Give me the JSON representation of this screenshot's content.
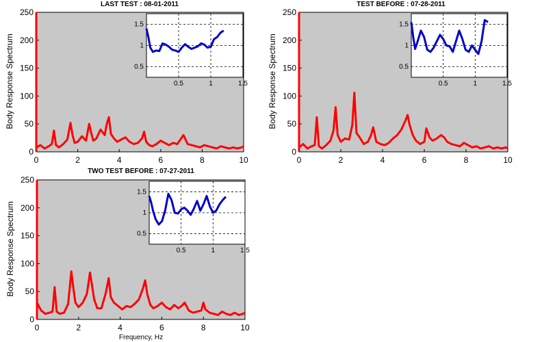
{
  "chart_data": [
    {
      "type": "line",
      "title": "LAST TEST : 08-01-2011",
      "ylabel": "Body Response Spectrum",
      "xlabel": "",
      "xlim": [
        0,
        10
      ],
      "ylim": [
        0,
        250
      ],
      "xticks": [
        "0",
        "2",
        "4",
        "6",
        "8",
        "10"
      ],
      "yticks": [
        "0",
        "50",
        "100",
        "150",
        "200",
        "250"
      ],
      "background": "#c8c8c8",
      "series": [
        {
          "color": "#ff0000",
          "x": [
            0.0,
            0.2,
            0.4,
            0.6,
            0.75,
            0.85,
            0.95,
            1.1,
            1.3,
            1.5,
            1.65,
            1.75,
            1.85,
            2.0,
            2.2,
            2.4,
            2.55,
            2.65,
            2.75,
            2.9,
            3.1,
            3.3,
            3.4,
            3.5,
            3.6,
            3.75,
            3.9,
            4.1,
            4.3,
            4.5,
            4.7,
            4.9,
            5.1,
            5.2,
            5.3,
            5.45,
            5.6,
            5.8,
            6.0,
            6.2,
            6.4,
            6.6,
            6.8,
            6.95,
            7.1,
            7.3,
            7.5,
            7.7,
            7.9,
            8.1,
            8.3,
            8.5,
            8.7,
            8.9,
            9.1,
            9.3,
            9.5,
            9.7,
            9.9,
            10.0
          ],
          "y": [
            8,
            12,
            6,
            10,
            14,
            38,
            12,
            8,
            14,
            22,
            52,
            30,
            16,
            18,
            28,
            20,
            50,
            34,
            20,
            24,
            40,
            30,
            50,
            62,
            32,
            24,
            18,
            22,
            26,
            18,
            14,
            16,
            24,
            36,
            18,
            12,
            10,
            14,
            20,
            16,
            12,
            16,
            14,
            22,
            30,
            14,
            12,
            10,
            8,
            12,
            10,
            8,
            6,
            10,
            8,
            6,
            8,
            6,
            8,
            10
          ]
        },
        {
          "color": "#ff0000",
          "x": [
            0.0,
            0.0
          ],
          "y": [
            0,
            250
          ]
        }
      ],
      "inset": {
        "xlim": [
          0,
          1.5
        ],
        "ylim": [
          0.25,
          1.75
        ],
        "xticks": [
          "0.5",
          "1",
          "1.5"
        ],
        "yticks": [
          "0.5",
          "1",
          "1.5"
        ],
        "series": [
          {
            "color": "#0000cc",
            "x": [
              0.0,
              0.03,
              0.06,
              0.1,
              0.15,
              0.2,
              0.25,
              0.3,
              0.35,
              0.4,
              0.45,
              0.5,
              0.55,
              0.6,
              0.65,
              0.7,
              0.75,
              0.8,
              0.85,
              0.9,
              0.95,
              1.0,
              1.05,
              1.1,
              1.15,
              1.2
            ],
            "y": [
              1.4,
              1.2,
              0.95,
              0.85,
              0.88,
              0.87,
              1.05,
              1.02,
              0.97,
              0.9,
              0.88,
              0.85,
              0.95,
              1.03,
              0.97,
              0.92,
              0.95,
              0.98,
              1.05,
              1.02,
              0.95,
              0.97,
              1.15,
              1.2,
              1.3,
              1.35
            ]
          }
        ]
      }
    },
    {
      "type": "line",
      "title": "TEST BEFORE : 07-28-2011",
      "ylabel": "Body Response Spectrum",
      "xlabel": "",
      "xlim": [
        0,
        10
      ],
      "ylim": [
        0,
        250
      ],
      "xticks": [
        "0",
        "2",
        "4",
        "6",
        "8",
        "10"
      ],
      "yticks": [
        "0",
        "50",
        "100",
        "150",
        "200",
        "250"
      ],
      "background": "#c8c8c8",
      "series": [
        {
          "color": "#ff0000",
          "x": [
            0.0,
            0.2,
            0.4,
            0.6,
            0.75,
            0.85,
            0.95,
            1.1,
            1.3,
            1.5,
            1.65,
            1.75,
            1.85,
            2.0,
            2.2,
            2.4,
            2.55,
            2.65,
            2.75,
            2.9,
            3.1,
            3.3,
            3.45,
            3.55,
            3.7,
            3.9,
            4.1,
            4.3,
            4.5,
            4.7,
            4.9,
            5.1,
            5.2,
            5.3,
            5.45,
            5.6,
            5.8,
            6.0,
            6.1,
            6.25,
            6.4,
            6.6,
            6.8,
            6.95,
            7.1,
            7.3,
            7.5,
            7.7,
            7.9,
            8.1,
            8.3,
            8.5,
            8.7,
            8.9,
            9.1,
            9.3,
            9.5,
            9.7,
            9.9,
            10.0
          ],
          "y": [
            8,
            14,
            6,
            10,
            12,
            62,
            10,
            6,
            12,
            20,
            38,
            80,
            30,
            18,
            24,
            22,
            48,
            106,
            34,
            26,
            14,
            18,
            30,
            44,
            18,
            14,
            12,
            16,
            24,
            30,
            40,
            56,
            66,
            48,
            30,
            20,
            14,
            18,
            42,
            26,
            20,
            24,
            30,
            26,
            18,
            14,
            12,
            10,
            16,
            12,
            8,
            10,
            6,
            8,
            10,
            6,
            8,
            6,
            8,
            6
          ]
        },
        {
          "color": "#ff0000",
          "x": [
            0.0,
            0.0
          ],
          "y": [
            0,
            250
          ]
        }
      ],
      "inset": {
        "xlim": [
          0,
          1.5
        ],
        "ylim": [
          0.25,
          1.75
        ],
        "xticks": [
          "0.5",
          "1",
          "1.5"
        ],
        "yticks": [
          "0.5",
          "1",
          "1.5"
        ],
        "series": [
          {
            "color": "#0000cc",
            "x": [
              0.0,
              0.03,
              0.06,
              0.1,
              0.15,
              0.2,
              0.25,
              0.3,
              0.35,
              0.4,
              0.45,
              0.5,
              0.55,
              0.6,
              0.65,
              0.7,
              0.75,
              0.8,
              0.85,
              0.9,
              0.95,
              1.0,
              1.05,
              1.1,
              1.15,
              1.2
            ],
            "y": [
              1.55,
              1.2,
              0.92,
              1.1,
              1.35,
              1.2,
              0.9,
              0.85,
              0.95,
              1.1,
              1.25,
              1.15,
              1.0,
              0.98,
              0.85,
              1.1,
              1.35,
              1.15,
              0.9,
              0.85,
              1.0,
              0.9,
              0.8,
              1.1,
              1.6,
              1.55
            ]
          }
        ]
      }
    },
    {
      "type": "line",
      "title": "TWO TEST BEFORE : 07-27-2011",
      "ylabel": "Body Response Spectrum",
      "xlabel": "Frequency, Hz",
      "xlim": [
        0,
        10
      ],
      "ylim": [
        0,
        250
      ],
      "xticks": [
        "0",
        "2",
        "4",
        "6",
        "8",
        "10"
      ],
      "yticks": [
        "0",
        "50",
        "100",
        "150",
        "200",
        "250"
      ],
      "background": "#c8c8c8",
      "series": [
        {
          "color": "#ff0000",
          "x": [
            0.0,
            0.2,
            0.4,
            0.6,
            0.75,
            0.85,
            0.95,
            1.1,
            1.3,
            1.5,
            1.65,
            1.75,
            1.85,
            2.0,
            2.2,
            2.4,
            2.55,
            2.65,
            2.75,
            2.9,
            3.1,
            3.3,
            3.45,
            3.55,
            3.7,
            3.9,
            4.1,
            4.3,
            4.5,
            4.7,
            4.9,
            5.1,
            5.2,
            5.3,
            5.45,
            5.6,
            5.8,
            6.0,
            6.2,
            6.4,
            6.6,
            6.8,
            6.95,
            7.1,
            7.3,
            7.5,
            7.7,
            7.9,
            8.0,
            8.1,
            8.3,
            8.5,
            8.7,
            8.9,
            9.1,
            9.3,
            9.5,
            9.7,
            9.9,
            10.0
          ],
          "y": [
            30,
            16,
            10,
            12,
            14,
            58,
            14,
            10,
            12,
            28,
            86,
            56,
            30,
            22,
            30,
            46,
            84,
            60,
            36,
            20,
            20,
            46,
            74,
            40,
            30,
            24,
            18,
            24,
            22,
            28,
            36,
            56,
            70,
            46,
            26,
            20,
            24,
            30,
            22,
            18,
            26,
            20,
            24,
            30,
            16,
            12,
            14,
            16,
            30,
            18,
            12,
            10,
            8,
            14,
            10,
            8,
            12,
            8,
            10,
            12
          ]
        },
        {
          "color": "#ff0000",
          "x": [
            0.0,
            0.0
          ],
          "y": [
            0,
            250
          ]
        }
      ],
      "inset": {
        "xlim": [
          0,
          1.5
        ],
        "ylim": [
          0.25,
          1.75
        ],
        "xticks": [
          "0.5",
          "1",
          "1.5"
        ],
        "yticks": [
          "0.5",
          "1",
          "1.5"
        ],
        "series": [
          {
            "color": "#0000cc",
            "x": [
              0.0,
              0.03,
              0.06,
              0.1,
              0.15,
              0.2,
              0.25,
              0.3,
              0.35,
              0.4,
              0.45,
              0.5,
              0.55,
              0.6,
              0.65,
              0.7,
              0.75,
              0.8,
              0.85,
              0.9,
              0.95,
              1.0,
              1.05,
              1.1,
              1.15,
              1.2
            ],
            "y": [
              1.4,
              1.25,
              1.05,
              0.85,
              0.72,
              0.8,
              1.05,
              1.45,
              1.3,
              1.0,
              0.98,
              1.08,
              1.12,
              1.05,
              0.95,
              1.1,
              1.28,
              1.05,
              1.2,
              1.4,
              1.15,
              1.0,
              1.05,
              1.2,
              1.3,
              1.38
            ]
          }
        ]
      }
    }
  ]
}
